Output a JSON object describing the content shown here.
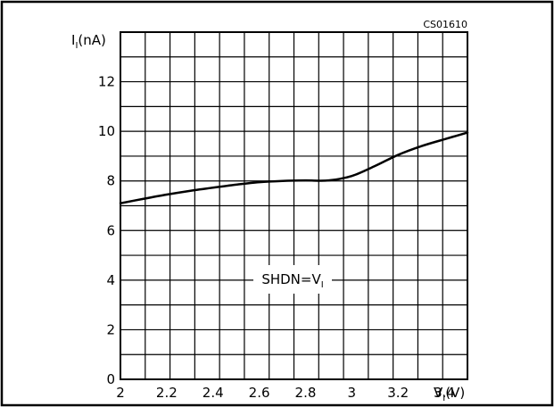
{
  "figure_code": "CS01610",
  "annotation": {
    "main": "SHDN=V",
    "sub": "I"
  },
  "y_axis_label": {
    "main": "I",
    "sub": "I",
    "unit": "(nA)"
  },
  "x_axis_label": {
    "main": "V",
    "sub": "I",
    "unit": "(V)"
  },
  "chart_data": {
    "type": "line",
    "title": "",
    "xlim": [
      2,
      3.5
    ],
    "ylim": [
      0,
      14
    ],
    "grid": true,
    "x_ticks": [
      2,
      2.2,
      2.4,
      2.6,
      2.8,
      3,
      3.2,
      3.4
    ],
    "x_tick_labels": [
      "2",
      "2.2",
      "2.4",
      "2.6",
      "2.8",
      "3",
      "3.2",
      "3.4"
    ],
    "y_ticks": [
      0,
      2,
      4,
      6,
      8,
      10,
      12
    ],
    "y_tick_labels": [
      "0",
      "2",
      "4",
      "6",
      "8",
      "10",
      "12"
    ],
    "series": [
      {
        "x": [
          2.0,
          2.1,
          2.2,
          2.3,
          2.4,
          2.5,
          2.6,
          2.7,
          2.8,
          2.9,
          3.0,
          3.1,
          3.2,
          3.3,
          3.4,
          3.5
        ],
        "y": [
          7.1,
          7.28,
          7.45,
          7.6,
          7.73,
          7.85,
          7.95,
          8.0,
          8.02,
          8.02,
          8.2,
          8.6,
          9.05,
          9.4,
          9.68,
          9.95
        ]
      }
    ]
  }
}
